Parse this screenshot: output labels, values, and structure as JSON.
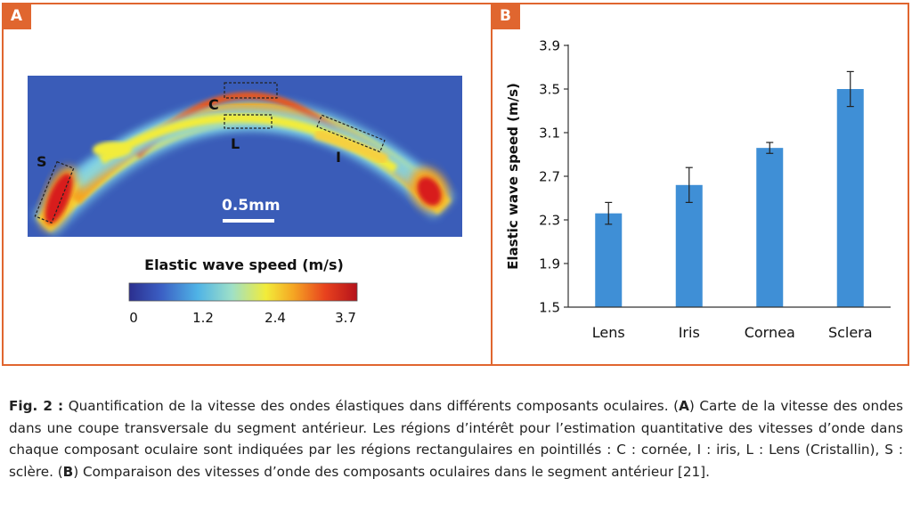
{
  "panel_a": {
    "tag": "A",
    "labels": {
      "cornea": "C",
      "lens": "L",
      "iris": "I",
      "sclera": "S"
    },
    "scale_bar_label": "0.5mm",
    "colorbar": {
      "title": "Elastic wave speed (m/s)",
      "ticks": [
        "0",
        "1.2",
        "2.4",
        "3.7"
      ],
      "colors": [
        "#2b2f8f",
        "#3b5fc4",
        "#4fb3e6",
        "#9ee0c8",
        "#f2ec3a",
        "#f5a623",
        "#e8421e",
        "#b5121b"
      ]
    }
  },
  "panel_b": {
    "tag": "B"
  },
  "chart_data": {
    "type": "bar",
    "categories": [
      "Lens",
      "Iris",
      "Cornea",
      "Sclera"
    ],
    "values": [
      2.36,
      2.62,
      2.96,
      3.5
    ],
    "error": [
      0.1,
      0.16,
      0.05,
      0.16
    ],
    "ylabel": "Elastic wave speed (m/s)",
    "ylim": [
      1.5,
      3.9
    ],
    "yticks": [
      "1.5",
      "1.9",
      "2.3",
      "2.7",
      "3.1",
      "3.5",
      "3.9"
    ],
    "bar_color": "#3f8fd6",
    "grid": false
  },
  "caption": {
    "label": "Fig. 2 :",
    "part1": " Quantification de la vitesse des ondes élastiques dans différents composants oculaires. (",
    "A": "A",
    "part2": ") Carte de la vitesse des ondes dans une coupe transversale du segment antérieur. Les régions d’intérêt pour l’estimation quantitative des vitesses d’onde dans chaque composant oculaire sont indiquées par les régions rectangulaires en pointillés : C : cornée, I : iris, L : Lens (Cristallin), S : sclère. (",
    "B": "B",
    "part3": ") Comparaison des vitesses d’onde des composants oculaires dans le segment antérieur [21]."
  }
}
